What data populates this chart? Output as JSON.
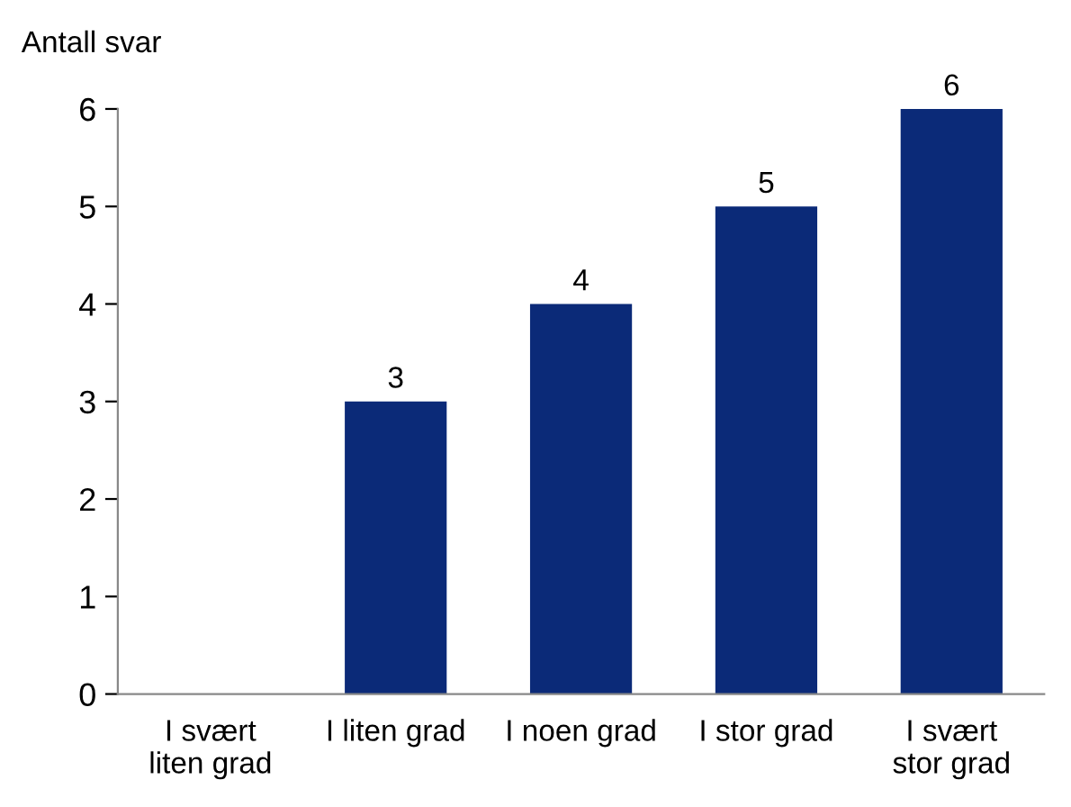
{
  "chart_data": {
    "type": "bar",
    "ylabel": "Antall svar",
    "categories": [
      "I svært liten grad",
      "I liten grad",
      "I noen grad",
      "I stor grad",
      "I svært stor grad"
    ],
    "values": [
      0,
      3,
      4,
      5,
      6
    ],
    "value_labels": [
      null,
      "3",
      "4",
      "5",
      "6"
    ],
    "color": "#0b2a78",
    "ylim": [
      0,
      6
    ],
    "yticks": [
      0,
      1,
      2,
      3,
      4,
      5,
      6
    ],
    "grid": false,
    "legend": false
  }
}
